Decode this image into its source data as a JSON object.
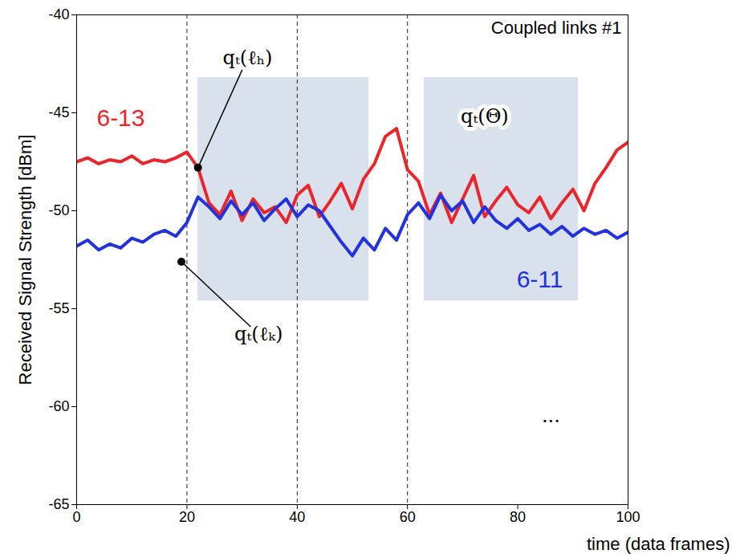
{
  "chart_data": {
    "type": "line",
    "title": "Coupled links #1",
    "x_label": "time (data frames)",
    "y_label": "Received Signal Strength [dBm]",
    "x": [
      0,
      2,
      4,
      6,
      8,
      10,
      12,
      14,
      16,
      18,
      20,
      22,
      24,
      26,
      28,
      30,
      32,
      34,
      36,
      38,
      40,
      42,
      44,
      46,
      48,
      50,
      52,
      54,
      56,
      58,
      60,
      62,
      64,
      66,
      68,
      70,
      72,
      74,
      76,
      78,
      80,
      82,
      84,
      86,
      88,
      90,
      92,
      94,
      96,
      98,
      100
    ],
    "series": [
      {
        "name": "6-13",
        "color": "#e8262b",
        "label_at": [
          8,
          -45.3
        ],
        "values": [
          -47.5,
          -47.3,
          -47.6,
          -47.4,
          -47.5,
          -47.2,
          -47.6,
          -47.4,
          -47.5,
          -47.3,
          -47.0,
          -47.8,
          -49.6,
          -50.2,
          -49.0,
          -50.5,
          -49.4,
          -50.1,
          -49.8,
          -50.6,
          -49.2,
          -48.7,
          -50.3,
          -49.5,
          -48.6,
          -49.9,
          -48.4,
          -47.6,
          -46.2,
          -45.8,
          -47.9,
          -48.5,
          -50.2,
          -49.1,
          -50.6,
          -49.4,
          -48.2,
          -50.3,
          -49.5,
          -48.8,
          -49.7,
          -50.1,
          -49.3,
          -50.4,
          -49.6,
          -48.9,
          -50.0,
          -48.6,
          -47.8,
          -46.9,
          -46.5
        ]
      },
      {
        "name": "6-11",
        "color": "#2233dd",
        "label_at": [
          84,
          -53.5
        ],
        "values": [
          -51.8,
          -51.5,
          -52.0,
          -51.7,
          -51.9,
          -51.4,
          -51.6,
          -51.2,
          -51.0,
          -51.3,
          -50.6,
          -49.3,
          -49.8,
          -50.4,
          -49.5,
          -50.2,
          -49.6,
          -50.5,
          -49.9,
          -49.4,
          -50.3,
          -49.7,
          -50.0,
          -50.8,
          -51.6,
          -52.3,
          -51.4,
          -52.0,
          -50.9,
          -51.5,
          -50.2,
          -49.6,
          -50.4,
          -49.2,
          -50.0,
          -49.5,
          -50.6,
          -49.8,
          -50.5,
          -50.9,
          -50.4,
          -51.0,
          -50.7,
          -51.2,
          -50.8,
          -51.3,
          -50.9,
          -51.2,
          -51.0,
          -51.4,
          -51.1
        ]
      }
    ],
    "xlim": [
      0,
      100
    ],
    "xticks": [
      0,
      20,
      40,
      60,
      80,
      100
    ],
    "ylim": [
      -65,
      -40
    ],
    "yticks": [
      -65,
      -60,
      -55,
      -50,
      -45,
      -40
    ],
    "grid": false,
    "vlines": [
      20,
      40,
      60
    ],
    "shaded_regions": [
      {
        "x": [
          22,
          53
        ],
        "y": [
          -54.6,
          -43.2
        ]
      },
      {
        "x": [
          63,
          91
        ],
        "y": [
          -54.6,
          -43.2
        ]
      }
    ],
    "annotations": [
      {
        "text": "qₜ(ℓₕ)",
        "at": [
          31,
          -42.2
        ],
        "point": [
          22,
          -47.8
        ]
      },
      {
        "text": "qₜ(ℓₖ)",
        "at": [
          33,
          -56.3
        ],
        "point": [
          19,
          -52.6
        ]
      },
      {
        "text": "qₜ(Θ)",
        "at": [
          74,
          -45.2
        ]
      },
      {
        "text": "...",
        "at": [
          86,
          -60.5
        ]
      }
    ]
  }
}
